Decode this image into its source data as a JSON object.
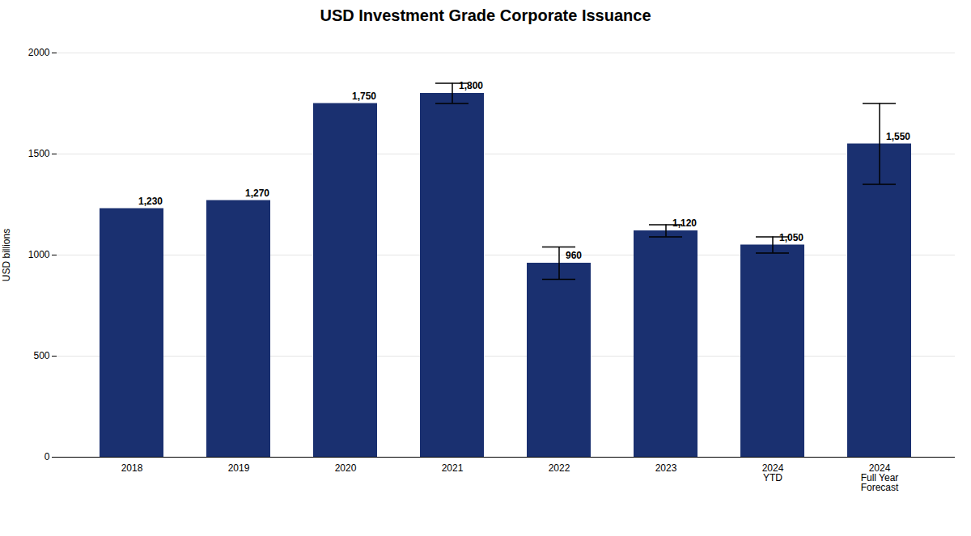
{
  "chart_data": {
    "type": "bar",
    "title": "USD Investment Grade Corporate Issuance",
    "categories": [
      "2018",
      "2019",
      "2020",
      "2021",
      "2022",
      "2023",
      "2024\nYTD",
      "2024\nFull Year\nForecast"
    ],
    "values": [
      1230,
      1270,
      1750,
      1800,
      960,
      1120,
      1050,
      1550
    ],
    "value_labels": [
      "1,230",
      "1,270",
      "1,750",
      "1,800",
      "960",
      "1,120",
      "1,050",
      "1,550"
    ],
    "errors": [
      null,
      null,
      null,
      50,
      80,
      30,
      40,
      200
    ],
    "colors": [
      "#1a3070",
      "#1a3070",
      "#1a3070",
      "#1a3070",
      "#1a3070",
      "#1a3070",
      "#1a3070",
      "#1a3070"
    ],
    "ylabel": "USD billions",
    "ylim": [
      0,
      2000
    ],
    "yticks": [
      0,
      500,
      1000,
      1500,
      2000
    ],
    "grid": true,
    "data_labels": true
  }
}
